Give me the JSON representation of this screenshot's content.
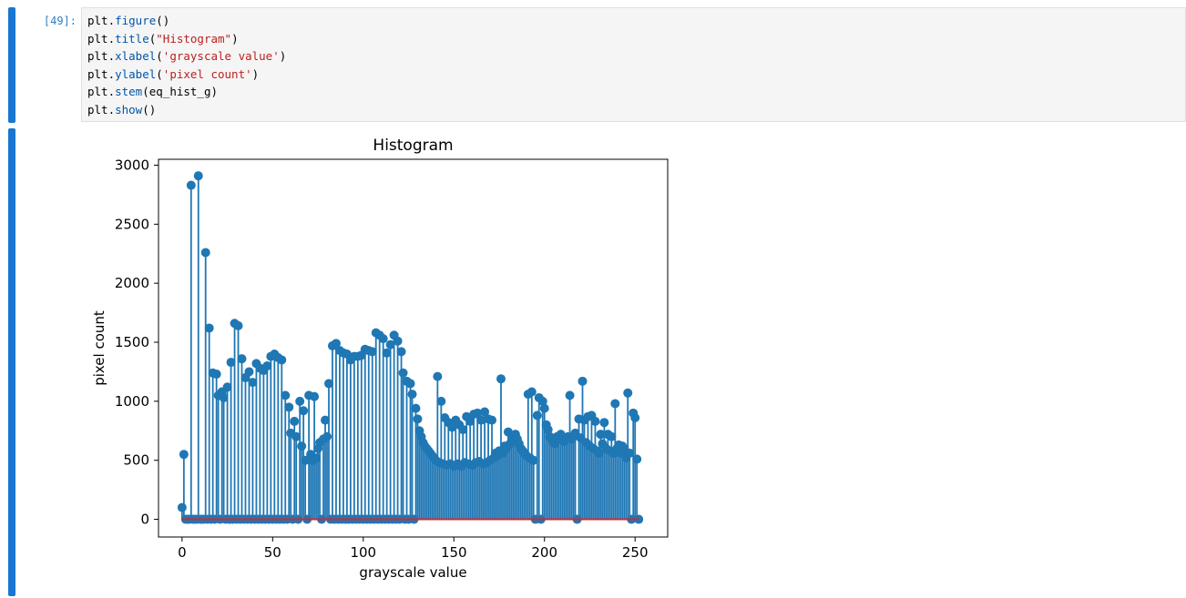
{
  "input_cell": {
    "prompt": "[49]:",
    "code_lines": [
      [
        {
          "t": "plt",
          "c": "name"
        },
        {
          "t": ".",
          "c": "dot"
        },
        {
          "t": "figure",
          "c": "fn"
        },
        {
          "t": "()",
          "c": "paren"
        }
      ],
      [
        {
          "t": "plt",
          "c": "name"
        },
        {
          "t": ".",
          "c": "dot"
        },
        {
          "t": "title",
          "c": "fn"
        },
        {
          "t": "(",
          "c": "paren"
        },
        {
          "t": "\"Histogram\"",
          "c": "str"
        },
        {
          "t": ")",
          "c": "paren"
        }
      ],
      [
        {
          "t": "plt",
          "c": "name"
        },
        {
          "t": ".",
          "c": "dot"
        },
        {
          "t": "xlabel",
          "c": "fn"
        },
        {
          "t": "(",
          "c": "paren"
        },
        {
          "t": "'grayscale value'",
          "c": "str"
        },
        {
          "t": ")",
          "c": "paren"
        }
      ],
      [
        {
          "t": "plt",
          "c": "name"
        },
        {
          "t": ".",
          "c": "dot"
        },
        {
          "t": "ylabel",
          "c": "fn"
        },
        {
          "t": "(",
          "c": "paren"
        },
        {
          "t": "'pixel count'",
          "c": "str"
        },
        {
          "t": ")",
          "c": "paren"
        }
      ],
      [
        {
          "t": "plt",
          "c": "name"
        },
        {
          "t": ".",
          "c": "dot"
        },
        {
          "t": "stem",
          "c": "fn"
        },
        {
          "t": "(eq_hist_g)",
          "c": "paren"
        }
      ],
      [
        {
          "t": "plt",
          "c": "name"
        },
        {
          "t": ".",
          "c": "dot"
        },
        {
          "t": "show",
          "c": "fn"
        },
        {
          "t": "()",
          "c": "paren"
        }
      ]
    ]
  },
  "colors": {
    "cell_bar": "#1976d2",
    "stem": "#1f77b4",
    "baseline": "#d62728"
  },
  "chart_data": {
    "type": "stem",
    "title": "Histogram",
    "xlabel": "grayscale value",
    "ylabel": "pixel count",
    "xlim": [
      -13,
      268
    ],
    "ylim": [
      -150,
      3050
    ],
    "xticks": [
      0,
      50,
      100,
      150,
      200,
      250
    ],
    "yticks": [
      0,
      500,
      1000,
      1500,
      2000,
      2500,
      3000
    ],
    "points": [
      [
        0,
        100
      ],
      [
        1,
        550
      ],
      [
        2,
        0
      ],
      [
        3,
        0
      ],
      [
        4,
        0
      ],
      [
        5,
        2830
      ],
      [
        6,
        0
      ],
      [
        7,
        0
      ],
      [
        8,
        0
      ],
      [
        9,
        2910
      ],
      [
        10,
        0
      ],
      [
        11,
        0
      ],
      [
        12,
        0
      ],
      [
        13,
        2260
      ],
      [
        14,
        0
      ],
      [
        15,
        1620
      ],
      [
        16,
        0
      ],
      [
        17,
        1240
      ],
      [
        18,
        0
      ],
      [
        19,
        1230
      ],
      [
        20,
        1050
      ],
      [
        21,
        0
      ],
      [
        22,
        1080
      ],
      [
        23,
        1030
      ],
      [
        24,
        0
      ],
      [
        25,
        1120
      ],
      [
        26,
        0
      ],
      [
        27,
        1330
      ],
      [
        28,
        0
      ],
      [
        29,
        1660
      ],
      [
        30,
        0
      ],
      [
        31,
        1640
      ],
      [
        32,
        0
      ],
      [
        33,
        1360
      ],
      [
        34,
        0
      ],
      [
        35,
        1200
      ],
      [
        36,
        0
      ],
      [
        37,
        1250
      ],
      [
        38,
        0
      ],
      [
        39,
        1160
      ],
      [
        40,
        0
      ],
      [
        41,
        1320
      ],
      [
        42,
        0
      ],
      [
        43,
        1280
      ],
      [
        44,
        0
      ],
      [
        45,
        1260
      ],
      [
        46,
        0
      ],
      [
        47,
        1300
      ],
      [
        48,
        0
      ],
      [
        49,
        1380
      ],
      [
        50,
        0
      ],
      [
        51,
        1400
      ],
      [
        52,
        0
      ],
      [
        53,
        1370
      ],
      [
        54,
        0
      ],
      [
        55,
        1350
      ],
      [
        56,
        0
      ],
      [
        57,
        1050
      ],
      [
        58,
        0
      ],
      [
        59,
        950
      ],
      [
        60,
        730
      ],
      [
        61,
        0
      ],
      [
        62,
        830
      ],
      [
        63,
        700
      ],
      [
        64,
        0
      ],
      [
        65,
        1000
      ],
      [
        66,
        620
      ],
      [
        67,
        920
      ],
      [
        68,
        500
      ],
      [
        69,
        0
      ],
      [
        70,
        1050
      ],
      [
        71,
        550
      ],
      [
        72,
        500
      ],
      [
        73,
        1040
      ],
      [
        74,
        520
      ],
      [
        75,
        600
      ],
      [
        76,
        650
      ],
      [
        77,
        0
      ],
      [
        78,
        680
      ],
      [
        79,
        840
      ],
      [
        80,
        700
      ],
      [
        81,
        1150
      ],
      [
        82,
        0
      ],
      [
        83,
        1470
      ],
      [
        84,
        0
      ],
      [
        85,
        1490
      ],
      [
        86,
        0
      ],
      [
        87,
        1430
      ],
      [
        88,
        0
      ],
      [
        89,
        1410
      ],
      [
        90,
        0
      ],
      [
        91,
        1400
      ],
      [
        92,
        0
      ],
      [
        93,
        1350
      ],
      [
        94,
        0
      ],
      [
        95,
        1380
      ],
      [
        96,
        0
      ],
      [
        97,
        1380
      ],
      [
        98,
        0
      ],
      [
        99,
        1390
      ],
      [
        100,
        0
      ],
      [
        101,
        1440
      ],
      [
        102,
        0
      ],
      [
        103,
        1430
      ],
      [
        104,
        0
      ],
      [
        105,
        1420
      ],
      [
        106,
        0
      ],
      [
        107,
        1580
      ],
      [
        108,
        0
      ],
      [
        109,
        1560
      ],
      [
        110,
        0
      ],
      [
        111,
        1530
      ],
      [
        112,
        0
      ],
      [
        113,
        1410
      ],
      [
        114,
        0
      ],
      [
        115,
        1480
      ],
      [
        116,
        0
      ],
      [
        117,
        1560
      ],
      [
        118,
        0
      ],
      [
        119,
        1510
      ],
      [
        120,
        0
      ],
      [
        121,
        1420
      ],
      [
        122,
        1240
      ],
      [
        123,
        0
      ],
      [
        124,
        1170
      ],
      [
        125,
        0
      ],
      [
        126,
        1150
      ],
      [
        127,
        1060
      ],
      [
        128,
        0
      ],
      [
        129,
        940
      ],
      [
        130,
        850
      ],
      [
        131,
        750
      ],
      [
        132,
        700
      ],
      [
        133,
        650
      ],
      [
        134,
        620
      ],
      [
        135,
        600
      ],
      [
        136,
        580
      ],
      [
        137,
        560
      ],
      [
        138,
        540
      ],
      [
        139,
        520
      ],
      [
        140,
        500
      ],
      [
        141,
        1210
      ],
      [
        142,
        480
      ],
      [
        143,
        1000
      ],
      [
        144,
        470
      ],
      [
        145,
        860
      ],
      [
        146,
        460
      ],
      [
        147,
        820
      ],
      [
        148,
        470
      ],
      [
        149,
        780
      ],
      [
        150,
        450
      ],
      [
        151,
        840
      ],
      [
        152,
        470
      ],
      [
        153,
        800
      ],
      [
        154,
        450
      ],
      [
        155,
        760
      ],
      [
        156,
        480
      ],
      [
        157,
        870
      ],
      [
        158,
        470
      ],
      [
        159,
        830
      ],
      [
        160,
        460
      ],
      [
        161,
        890
      ],
      [
        162,
        480
      ],
      [
        163,
        900
      ],
      [
        164,
        490
      ],
      [
        165,
        840
      ],
      [
        166,
        470
      ],
      [
        167,
        910
      ],
      [
        168,
        480
      ],
      [
        169,
        850
      ],
      [
        170,
        500
      ],
      [
        171,
        840
      ],
      [
        172,
        520
      ],
      [
        173,
        560
      ],
      [
        174,
        540
      ],
      [
        175,
        580
      ],
      [
        176,
        1190
      ],
      [
        177,
        560
      ],
      [
        178,
        620
      ],
      [
        179,
        600
      ],
      [
        180,
        740
      ],
      [
        181,
        640
      ],
      [
        182,
        700
      ],
      [
        183,
        660
      ],
      [
        184,
        720
      ],
      [
        185,
        680
      ],
      [
        186,
        640
      ],
      [
        187,
        600
      ],
      [
        188,
        580
      ],
      [
        189,
        560
      ],
      [
        190,
        540
      ],
      [
        191,
        1060
      ],
      [
        192,
        520
      ],
      [
        193,
        1080
      ],
      [
        194,
        500
      ],
      [
        195,
        0
      ],
      [
        196,
        880
      ],
      [
        197,
        1030
      ],
      [
        198,
        0
      ],
      [
        199,
        1000
      ],
      [
        200,
        940
      ],
      [
        201,
        800
      ],
      [
        202,
        760
      ],
      [
        203,
        700
      ],
      [
        204,
        680
      ],
      [
        205,
        650
      ],
      [
        206,
        640
      ],
      [
        207,
        700
      ],
      [
        208,
        680
      ],
      [
        209,
        720
      ],
      [
        210,
        690
      ],
      [
        211,
        660
      ],
      [
        212,
        680
      ],
      [
        213,
        700
      ],
      [
        214,
        1050
      ],
      [
        215,
        680
      ],
      [
        216,
        700
      ],
      [
        217,
        730
      ],
      [
        218,
        0
      ],
      [
        219,
        850
      ],
      [
        220,
        690
      ],
      [
        221,
        1170
      ],
      [
        222,
        840
      ],
      [
        223,
        650
      ],
      [
        224,
        870
      ],
      [
        225,
        620
      ],
      [
        226,
        880
      ],
      [
        227,
        600
      ],
      [
        228,
        830
      ],
      [
        229,
        580
      ],
      [
        230,
        560
      ],
      [
        231,
        720
      ],
      [
        232,
        640
      ],
      [
        233,
        820
      ],
      [
        234,
        600
      ],
      [
        235,
        720
      ],
      [
        236,
        580
      ],
      [
        237,
        700
      ],
      [
        238,
        560
      ],
      [
        239,
        980
      ],
      [
        240,
        600
      ],
      [
        241,
        630
      ],
      [
        242,
        560
      ],
      [
        243,
        620
      ],
      [
        244,
        600
      ],
      [
        245,
        520
      ],
      [
        246,
        1070
      ],
      [
        247,
        560
      ],
      [
        248,
        0
      ],
      [
        249,
        900
      ],
      [
        250,
        860
      ],
      [
        251,
        510
      ],
      [
        252,
        0
      ]
    ]
  }
}
